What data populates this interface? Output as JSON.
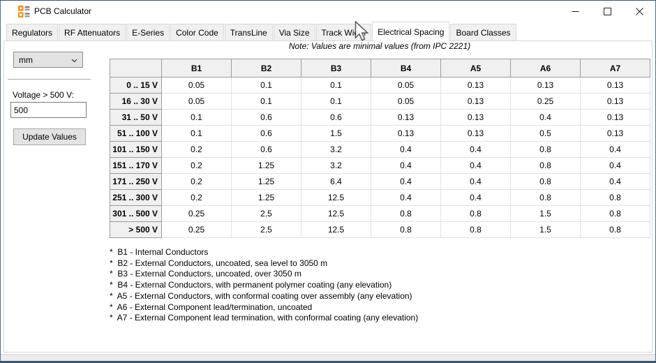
{
  "window": {
    "title": "PCB Calculator"
  },
  "icons": {
    "app": "calculator-icon",
    "minimize": "minimize-icon",
    "maximize": "maximize-icon",
    "close": "close-icon",
    "units_chevron": "chevron-down-icon"
  },
  "tabs": {
    "items": [
      "Regulators",
      "RF Attenuators",
      "E-Series",
      "Color Code",
      "TransLine",
      "Via Size",
      "Track Width",
      "Electrical Spacing",
      "Board Classes"
    ],
    "active": "Electrical Spacing"
  },
  "sidebar": {
    "units_value": "mm",
    "voltage_label": "Voltage > 500 V:",
    "voltage_value": "500",
    "update_button_label": "Update Values"
  },
  "note": "Note: Values are minimal values (from IPC 2221)",
  "spacing_table": {
    "columns": [
      "B1",
      "B2",
      "B3",
      "B4",
      "A5",
      "A6",
      "A7"
    ],
    "rows": [
      {
        "label": "0 .. 15 V",
        "values": [
          "0.05",
          "0.1",
          "0.1",
          "0.05",
          "0.13",
          "0.13",
          "0.13"
        ]
      },
      {
        "label": "16 .. 30 V",
        "values": [
          "0.05",
          "0.1",
          "0.1",
          "0.05",
          "0.13",
          "0.25",
          "0.13"
        ]
      },
      {
        "label": "31 .. 50 V",
        "values": [
          "0.1",
          "0.6",
          "0.6",
          "0.13",
          "0.13",
          "0.4",
          "0.13"
        ]
      },
      {
        "label": "51 .. 100 V",
        "values": [
          "0.1",
          "0.6",
          "1.5",
          "0.13",
          "0.13",
          "0.5",
          "0.13"
        ]
      },
      {
        "label": "101 .. 150 V",
        "values": [
          "0.2",
          "0.6",
          "3.2",
          "0.4",
          "0.4",
          "0.8",
          "0.4"
        ]
      },
      {
        "label": "151 .. 170 V",
        "values": [
          "0.2",
          "1.25",
          "3.2",
          "0.4",
          "0.4",
          "0.8",
          "0.4"
        ]
      },
      {
        "label": "171 .. 250 V",
        "values": [
          "0.2",
          "1.25",
          "6.4",
          "0.4",
          "0.4",
          "0.8",
          "0.4"
        ]
      },
      {
        "label": "251 .. 300 V",
        "values": [
          "0.2",
          "1.25",
          "12.5",
          "0.4",
          "0.4",
          "0.8",
          "0.8"
        ]
      },
      {
        "label": "301 .. 500 V",
        "values": [
          "0.25",
          "2.5",
          "12.5",
          "0.8",
          "0.8",
          "1.5",
          "0.8"
        ]
      },
      {
        "label": "> 500 V",
        "values": [
          "0.25",
          "2.5",
          "12.5",
          "0.8",
          "0.8",
          "1.5",
          "0.8"
        ]
      }
    ]
  },
  "footnotes": [
    "*  B1 - Internal Conductors",
    "*  B2 - External Conductors, uncoated, sea level to 3050 m",
    "*  B3 - External Conductors, uncoated, over 3050 m",
    "*  B4 - External Conductors, with permanent polymer coating (any elevation)",
    "*  A5 - External Conductors, with conformal coating over assembly (any elevation)",
    "*  A6 - External Component lead/termination, uncoated",
    "*  A7 - External Component lead termination, with conformal coating (any elevation)"
  ],
  "colors": {
    "window_border": "#3a566f",
    "accent_orange": "#ef8b00",
    "header_bg": "#f0f0f0",
    "header_border": "#9b9b9b",
    "grid_line": "#e2e2e2"
  }
}
